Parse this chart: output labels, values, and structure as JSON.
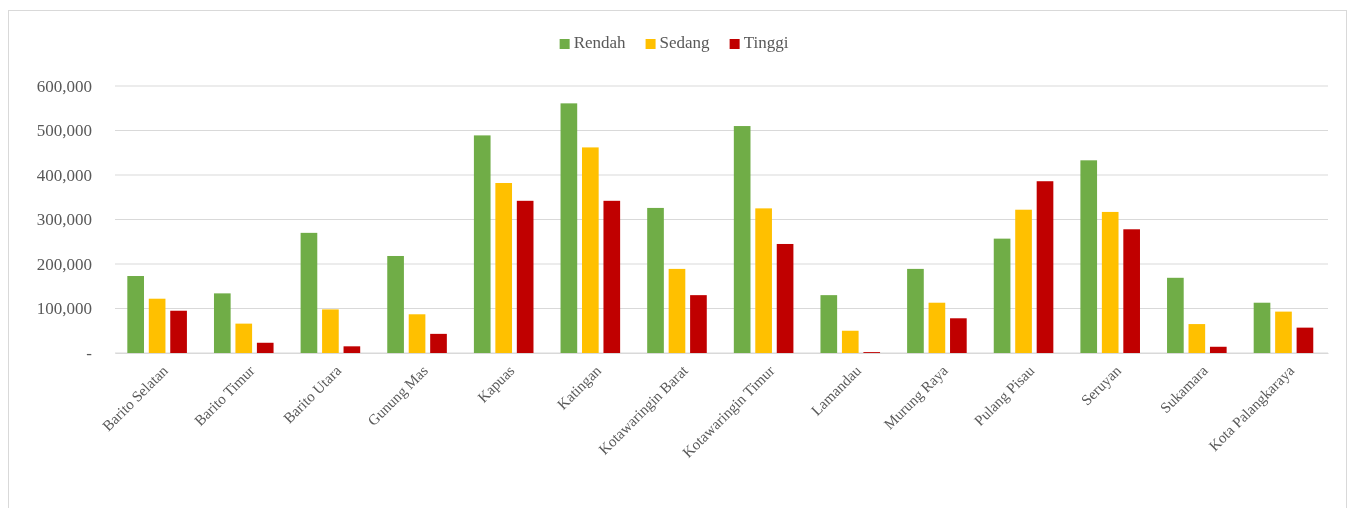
{
  "chart_data": {
    "type": "bar",
    "categories": [
      "Barito Selatan",
      "Barito Timur",
      "Barito Utara",
      "Gunung Mas",
      "Kapuas",
      "Katingan",
      "Kotawaringin Barat",
      "Kotawaringin Timur",
      "Lamandau",
      "Murung Raya",
      "Pulang Pisau",
      "Seruyan",
      "Sukamara",
      "Kota Palangkaraya"
    ],
    "series": [
      {
        "name": "Rendah",
        "color": "#70ad47",
        "values": [
          173000,
          134000,
          270000,
          218000,
          489000,
          561000,
          326000,
          510000,
          130000,
          189000,
          257000,
          433000,
          169000,
          113000
        ]
      },
      {
        "name": "Sedang",
        "color": "#ffc000",
        "values": [
          122000,
          66000,
          98000,
          87000,
          382000,
          462000,
          189000,
          325000,
          50000,
          113000,
          322000,
          317000,
          65000,
          93000
        ]
      },
      {
        "name": "Tinggi",
        "color": "#c00000",
        "values": [
          95000,
          23000,
          15000,
          43000,
          342000,
          342000,
          130000,
          245000,
          2000,
          78000,
          386000,
          278000,
          14000,
          57000
        ]
      }
    ],
    "ylim": [
      0,
      600000
    ],
    "yticks": [
      {
        "value": 0,
        "label": "-"
      },
      {
        "value": 100000,
        "label": "100,000"
      },
      {
        "value": 200000,
        "label": "200,000"
      },
      {
        "value": 300000,
        "label": "300,000"
      },
      {
        "value": 400000,
        "label": "400,000"
      },
      {
        "value": 500000,
        "label": "500,000"
      },
      {
        "value": 600000,
        "label": "600,000"
      }
    ],
    "grid": "y",
    "legend": "top"
  }
}
